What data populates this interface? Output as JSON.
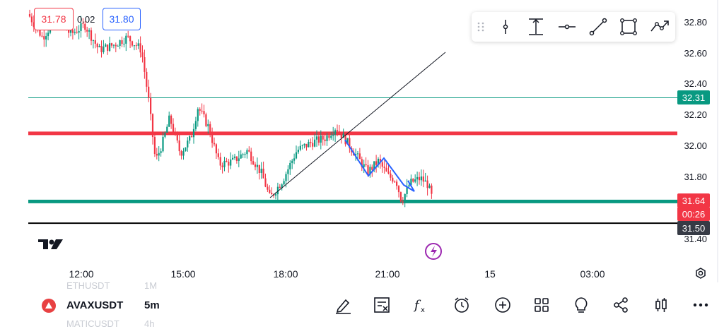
{
  "chart_data": {
    "type": "candlestick",
    "symbol": "AVAXUSDT",
    "interval": "5m",
    "y_ticks": [
      "32.80",
      "32.60",
      "32.40",
      "32.20",
      "32.00",
      "31.80",
      "31.40"
    ],
    "x_ticks": [
      "12:00",
      "15:00",
      "18:00",
      "21:00",
      "15",
      "03:00"
    ],
    "price_tags": [
      {
        "value": "32.31",
        "color": "#089981"
      },
      {
        "value": "31.64",
        "color": "#f23645"
      },
      {
        "value": "00:26",
        "color": "#f23645"
      },
      {
        "value": "31.50",
        "color": "#363a45"
      }
    ],
    "horizontal_lines": [
      {
        "price": 32.31,
        "color": "#089981",
        "style": "thin"
      },
      {
        "price": 32.08,
        "color": "#f23645",
        "style": "thick"
      },
      {
        "price": 31.64,
        "color": "#089981",
        "style": "thick"
      },
      {
        "price": 31.5,
        "color": "#000000",
        "style": "medium"
      }
    ],
    "colors": {
      "up": "#089981",
      "down": "#f23645"
    }
  },
  "quote": {
    "sell": "31.78",
    "spread": "0.02",
    "buy": "31.80"
  },
  "logo_text": "TV",
  "drawing_tools": [
    "drag-handle",
    "vertical-line",
    "measure",
    "horizontal-ray",
    "trend-line",
    "rectangle",
    "path"
  ],
  "bottom_bar": {
    "symbol": "AVAXUSDT",
    "interval": "5m",
    "ghost_above": "ETHUSDT",
    "ghost_above_tf": "1M",
    "ghost_below": "MATICUSDT",
    "ghost_below_tf": "4h",
    "buttons": [
      "pen-icon",
      "watchlist-icon",
      "indicators-icon",
      "alert-icon",
      "add-icon",
      "layouts-icon",
      "ideas-icon",
      "share-icon",
      "chart-type-icon",
      "more-icon"
    ]
  }
}
